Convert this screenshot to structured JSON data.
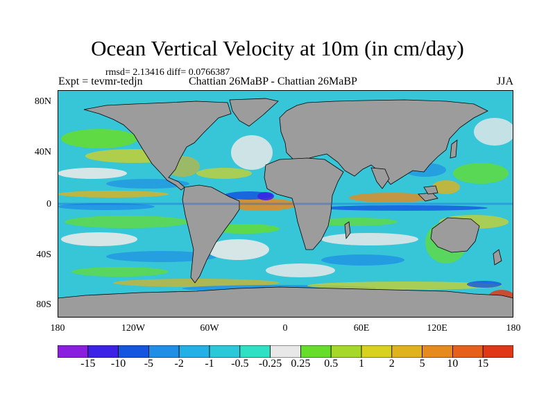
{
  "title": "Ocean Vertical Velocity at 10m (in cm/day)",
  "stats": "rmsd= 2.13416 diff= 0.0766387",
  "experiment": "Expt = tevmr-tedjn",
  "comparison": "Chattian  26MaBP - Chattian  26MaBP",
  "season": "JJA",
  "map": {
    "land_color": "#9c9c9c",
    "ocean_base_color": "#36c6d8",
    "lat_ticks": [
      "80N",
      "40N",
      "0",
      "40S",
      "80S"
    ],
    "lon_ticks": [
      "180",
      "120W",
      "60W",
      "0",
      "60E",
      "120E",
      "180"
    ]
  },
  "colorbar": {
    "colors": [
      "#8a1fe0",
      "#3b22e6",
      "#1456e0",
      "#1f8ee6",
      "#22b0e6",
      "#2ac8d8",
      "#2ee0c4",
      "#e8e8e8",
      "#66dd2a",
      "#a6d82a",
      "#d8d21e",
      "#e0b21e",
      "#e68a1e",
      "#e6601c",
      "#e03816"
    ],
    "labels": [
      "-15",
      "-10",
      "-5",
      "-2",
      "-1",
      "-0.5",
      "-0.25",
      "0.25",
      "0.5",
      "1",
      "2",
      "5",
      "10",
      "15"
    ]
  }
}
